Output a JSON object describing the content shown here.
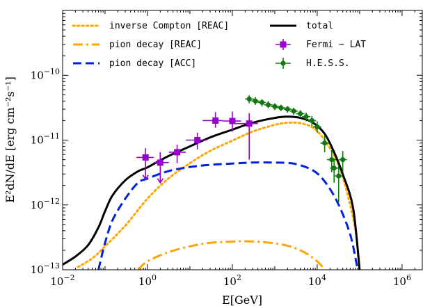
{
  "chart_data": {
    "type": "line",
    "xlabel": "E[GeV]",
    "ylabel": "E²dN/dE [erg cm⁻²s⁻¹]",
    "xscale": "log",
    "yscale": "log",
    "xlim": [
      0.01,
      3000000
    ],
    "ylim": [
      1e-13,
      1e-09
    ],
    "legend_position": "top",
    "x_ticks": [
      {
        "value": 0.01,
        "label": "10",
        "exp": "−2"
      },
      {
        "value": 1,
        "label": "10",
        "exp": "0"
      },
      {
        "value": 100,
        "label": "10",
        "exp": "2"
      },
      {
        "value": 10000,
        "label": "10",
        "exp": "4"
      },
      {
        "value": 1000000,
        "label": "10",
        "exp": "6"
      }
    ],
    "y_ticks": [
      {
        "value": 1e-13,
        "label": "10",
        "exp": "−13"
      },
      {
        "value": 1e-12,
        "label": "10",
        "exp": "−12"
      },
      {
        "value": 1e-11,
        "label": "10",
        "exp": "−11"
      },
      {
        "value": 1e-10,
        "label": "10",
        "exp": "−10"
      }
    ],
    "series": [
      {
        "name": "inverse Compton [REAC]",
        "kind": "line",
        "style": "dotted",
        "color": "#FFA500",
        "points": [
          [
            0.023,
            1.1e-13
          ],
          [
            0.05,
            1.5e-13
          ],
          [
            0.1,
            2.3e-13
          ],
          [
            0.3,
            4.8e-13
          ],
          [
            1,
            1.25e-12
          ],
          [
            3,
            2.5e-12
          ],
          [
            10,
            4.4e-12
          ],
          [
            30,
            6.8e-12
          ],
          [
            100,
            9.8e-12
          ],
          [
            300,
            1.35e-11
          ],
          [
            1000,
            1.72e-11
          ],
          [
            2000,
            1.85e-11
          ],
          [
            4000,
            1.82e-11
          ],
          [
            8000,
            1.55e-11
          ],
          [
            15000,
            1e-11
          ],
          [
            30000,
            4.5e-12
          ],
          [
            50000,
            1.6e-12
          ],
          [
            80000,
            4e-13
          ],
          [
            100000,
            1e-13
          ]
        ]
      },
      {
        "name": "pion decay [REAC]",
        "kind": "line",
        "style": "dashdot",
        "color": "#FFA500",
        "points": [
          [
            0.6,
            1e-13
          ],
          [
            1,
            1.35e-13
          ],
          [
            3,
            1.85e-13
          ],
          [
            10,
            2.3e-13
          ],
          [
            30,
            2.6e-13
          ],
          [
            100,
            2.72e-13
          ],
          [
            200,
            2.75e-13
          ],
          [
            600,
            2.65e-13
          ],
          [
            2000,
            2.35e-13
          ],
          [
            5000,
            1.85e-13
          ],
          [
            10000,
            1.35e-13
          ],
          [
            15000,
            1e-13
          ]
        ]
      },
      {
        "name": "pion decay [ACC]",
        "kind": "line",
        "style": "dashed",
        "color": "#0022DD",
        "points": [
          [
            0.07,
            1e-13
          ],
          [
            0.1,
            2.6e-13
          ],
          [
            0.15,
            5.8e-13
          ],
          [
            0.3,
            1.25e-12
          ],
          [
            0.6,
            2.2e-12
          ],
          [
            1,
            2.55e-12
          ],
          [
            3,
            3.3e-12
          ],
          [
            10,
            3.85e-12
          ],
          [
            30,
            4.15e-12
          ],
          [
            100,
            4.35e-12
          ],
          [
            300,
            4.5e-12
          ],
          [
            1000,
            4.5e-12
          ],
          [
            3000,
            4.3e-12
          ],
          [
            8000,
            3.4e-12
          ],
          [
            15000,
            2.3e-12
          ],
          [
            30000,
            1.1e-12
          ],
          [
            60000,
            3.5e-13
          ],
          [
            90000,
            1e-13
          ]
        ]
      },
      {
        "name": "total",
        "kind": "line",
        "style": "solid",
        "color": "#000000",
        "points": [
          [
            0.01,
            1.2e-13
          ],
          [
            0.02,
            1.6e-13
          ],
          [
            0.04,
            2.4e-13
          ],
          [
            0.07,
            4.5e-13
          ],
          [
            0.1,
            8e-13
          ],
          [
            0.15,
            1.4e-12
          ],
          [
            0.3,
            2.4e-12
          ],
          [
            0.6,
            3.3e-12
          ],
          [
            1,
            3.8e-12
          ],
          [
            3,
            5.6e-12
          ],
          [
            10,
            8e-12
          ],
          [
            30,
            1.1e-11
          ],
          [
            100,
            1.45e-11
          ],
          [
            300,
            1.85e-11
          ],
          [
            1000,
            2.2e-11
          ],
          [
            2000,
            2.3e-11
          ],
          [
            4000,
            2.2e-11
          ],
          [
            8000,
            1.85e-11
          ],
          [
            15000,
            1.25e-11
          ],
          [
            25000,
            6.5e-12
          ],
          [
            40000,
            3e-12
          ],
          [
            70000,
            9e-13
          ],
          [
            100000,
            1e-13
          ]
        ]
      },
      {
        "name": "Fermi − LAT",
        "kind": "errorbar",
        "marker": "square",
        "color": "#9900CC",
        "points": [
          {
            "x": 0.9,
            "y": 5.4e-12,
            "ylo": 2.5e-12,
            "yhi": 7.5e-12,
            "xlo": 0.55,
            "xhi": 1.4,
            "upper_limit": true
          },
          {
            "x": 2,
            "y": 4.5e-12,
            "ylo": 2.2e-12,
            "yhi": 6.5e-12,
            "xlo": 1.4,
            "xhi": 3.2,
            "upper_limit": true
          },
          {
            "x": 5,
            "y": 6.5e-12,
            "ylo": 4.4e-12,
            "yhi": 8.5e-12,
            "xlo": 3.2,
            "xhi": 8
          },
          {
            "x": 15,
            "y": 1e-11,
            "ylo": 7.2e-12,
            "yhi": 1.3e-11,
            "xlo": 8,
            "xhi": 25
          },
          {
            "x": 40,
            "y": 2e-11,
            "ylo": 1.55e-11,
            "yhi": 2.7e-11,
            "xlo": 20,
            "xhi": 60
          },
          {
            "x": 100,
            "y": 1.97e-11,
            "ylo": 1.35e-11,
            "yhi": 2.75e-11,
            "xlo": 60,
            "xhi": 160
          },
          {
            "x": 250,
            "y": 1.8e-11,
            "ylo": 5e-12,
            "yhi": 2.6e-11,
            "xlo": 110,
            "xhi": 400
          }
        ]
      },
      {
        "name": "H.E.S.S.",
        "kind": "errorbar",
        "marker": "circle",
        "color": "#117711",
        "points": [
          {
            "x": 250,
            "y": 4.3e-11,
            "ylo": 3.7e-11,
            "yhi": 4.9e-11,
            "xlo": 200,
            "xhi": 330
          },
          {
            "x": 350,
            "y": 4e-11,
            "ylo": 3.5e-11,
            "yhi": 4.6e-11,
            "xlo": 280,
            "xhi": 440
          },
          {
            "x": 500,
            "y": 3.8e-11,
            "ylo": 3.3e-11,
            "yhi": 4.3e-11,
            "xlo": 400,
            "xhi": 620
          },
          {
            "x": 700,
            "y": 3.5e-11,
            "ylo": 3.1e-11,
            "yhi": 4e-11,
            "xlo": 560,
            "xhi": 880
          },
          {
            "x": 1000,
            "y": 3.3e-11,
            "ylo": 2.9e-11,
            "yhi": 3.7e-11,
            "xlo": 800,
            "xhi": 1250
          },
          {
            "x": 1400,
            "y": 3.15e-11,
            "ylo": 2.8e-11,
            "yhi": 3.5e-11,
            "xlo": 1120,
            "xhi": 1750
          },
          {
            "x": 2000,
            "y": 3e-11,
            "ylo": 2.65e-11,
            "yhi": 3.35e-11,
            "xlo": 1600,
            "xhi": 2500
          },
          {
            "x": 2800,
            "y": 2.8e-11,
            "ylo": 2.45e-11,
            "yhi": 3.15e-11,
            "xlo": 2250,
            "xhi": 3500
          },
          {
            "x": 4000,
            "y": 2.55e-11,
            "ylo": 2.2e-11,
            "yhi": 2.9e-11,
            "xlo": 3200,
            "xhi": 5000
          },
          {
            "x": 5500,
            "y": 2.3e-11,
            "ylo": 1.95e-11,
            "yhi": 2.65e-11,
            "xlo": 4400,
            "xhi": 6900
          },
          {
            "x": 7500,
            "y": 2e-11,
            "ylo": 1.65e-11,
            "yhi": 2.35e-11,
            "xlo": 6000,
            "xhi": 9400
          },
          {
            "x": 10000,
            "y": 1.6e-11,
            "ylo": 1.3e-11,
            "yhi": 1.95e-11,
            "xlo": 8000,
            "xhi": 12500
          },
          {
            "x": 15000,
            "y": 9e-12,
            "ylo": 6.5e-12,
            "yhi": 1.2e-11,
            "xlo": 12000,
            "xhi": 19000
          },
          {
            "x": 22000,
            "y": 5e-12,
            "ylo": 3.2e-12,
            "yhi": 7e-12,
            "xlo": 17000,
            "xhi": 28000
          },
          {
            "x": 25000,
            "y": 3.7e-12,
            "ylo": 2.2e-12,
            "yhi": 5.2e-12,
            "xlo": 20000,
            "xhi": 32000
          },
          {
            "x": 32000,
            "y": 2.8e-12,
            "ylo": 1.1e-12,
            "yhi": 4.2e-12,
            "xlo": 26000,
            "xhi": 40000
          },
          {
            "x": 40000,
            "y": 5e-12,
            "ylo": 3.2e-12,
            "yhi": 6.8e-12,
            "xlo": 32000,
            "xhi": 50000
          }
        ]
      }
    ]
  }
}
